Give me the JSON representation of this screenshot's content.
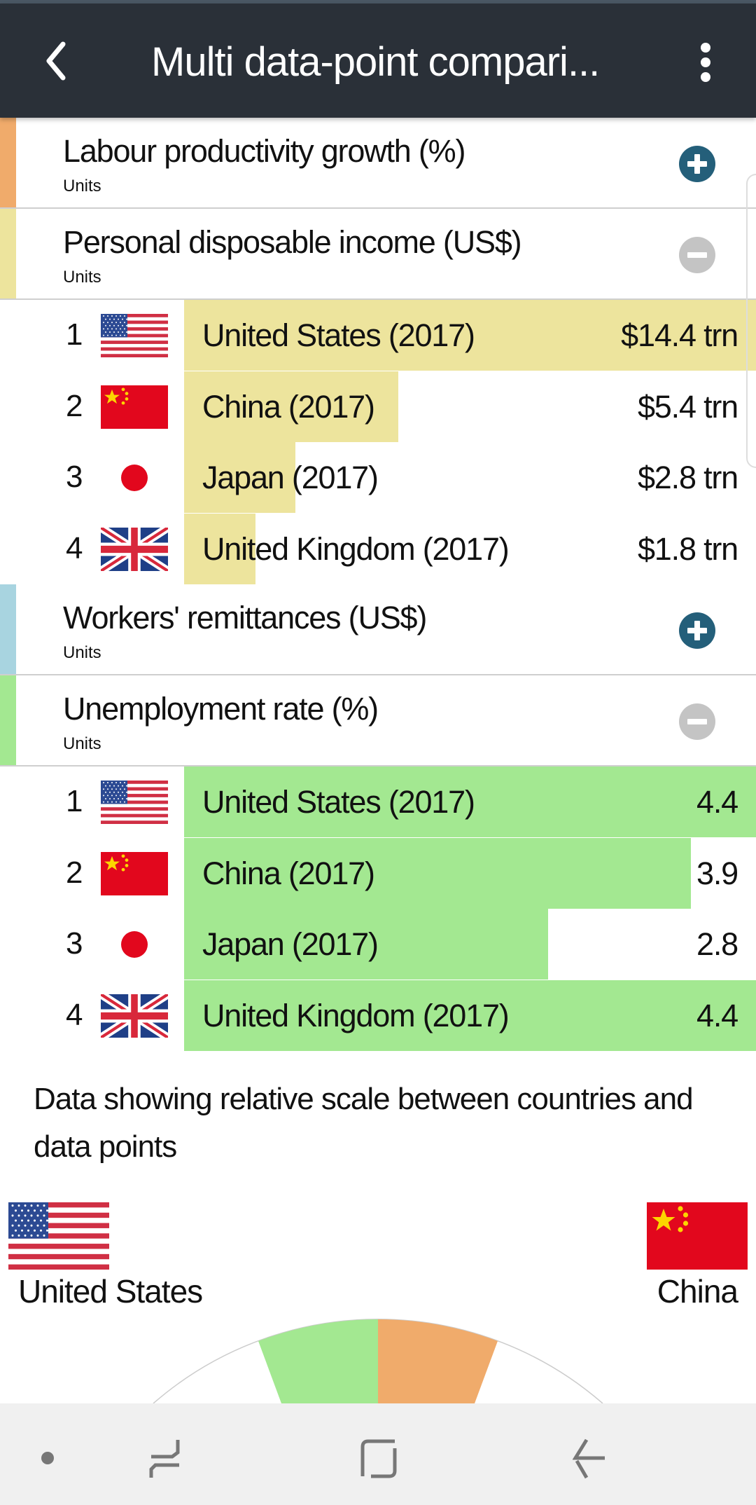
{
  "header": {
    "title": "Multi data-point compari..."
  },
  "sections": [
    {
      "name": "Labour productivity growth (%)",
      "units": "Units",
      "color": "#f0ab6b",
      "state": "collapsed"
    },
    {
      "name": "Personal disposable income (US$)",
      "units": "Units",
      "color": "#ede49d",
      "state": "expanded",
      "rows": [
        {
          "rank": "1",
          "flag": "us",
          "country": "United States (2017)",
          "display": "$14.4 trn",
          "value": 14.4
        },
        {
          "rank": "2",
          "flag": "cn",
          "country": "China (2017)",
          "display": "$5.4 trn",
          "value": 5.4
        },
        {
          "rank": "3",
          "flag": "jp",
          "country": "Japan (2017)",
          "display": "$2.8 trn",
          "value": 2.8
        },
        {
          "rank": "4",
          "flag": "uk",
          "country": "United Kingdom (2017)",
          "display": "$1.8 trn",
          "value": 1.8
        }
      ]
    },
    {
      "name": "Workers' remittances (US$)",
      "units": "Units",
      "color": "#a8d4e0",
      "state": "collapsed"
    },
    {
      "name": "Unemployment rate (%)",
      "units": "Units",
      "color": "#a3e891",
      "state": "expanded",
      "rows": [
        {
          "rank": "1",
          "flag": "us",
          "country": "United States (2017)",
          "display": "4.4",
          "value": 4.4
        },
        {
          "rank": "2",
          "flag": "cn",
          "country": "China (2017)",
          "display": "3.9",
          "value": 3.9
        },
        {
          "rank": "3",
          "flag": "jp",
          "country": "Japan (2017)",
          "display": "2.8",
          "value": 2.8
        },
        {
          "rank": "4",
          "flag": "uk",
          "country": "United Kingdom (2017)",
          "display": "4.4",
          "value": 4.4
        }
      ]
    }
  ],
  "caption": "Data showing relative scale between countries and data points",
  "comparison": {
    "left": {
      "flag": "us",
      "label": "United States"
    },
    "right": {
      "flag": "cn",
      "label": "China"
    }
  },
  "gauge_colors": {
    "left": "#a3e891",
    "right": "#f0ab6b"
  }
}
